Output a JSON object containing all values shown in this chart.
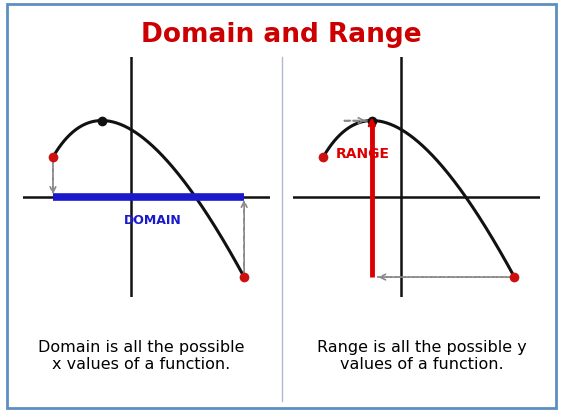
{
  "title": "Domain and Range",
  "title_color": "#cc0000",
  "title_fontsize": 19,
  "bg_color": "#ffffff",
  "panel_bg_color": "#c5d8ea",
  "border_color": "#5a8fc0",
  "left_caption": "Domain is all the possible\nx values of a function.",
  "right_caption": "Range is all the possible y\nvalues of a function.",
  "domain_label": "DOMAIN",
  "range_label": "RANGE",
  "domain_color": "#1a1acc",
  "range_color": "#dd0000",
  "caption_fontsize": 11.5,
  "curve_color": "#111111",
  "dot_color_red": "#cc1111",
  "dot_color_black": "#111111",
  "axis_color": "#111111",
  "dashed_color": "#888888",
  "divider_color": "#b0b8cc"
}
